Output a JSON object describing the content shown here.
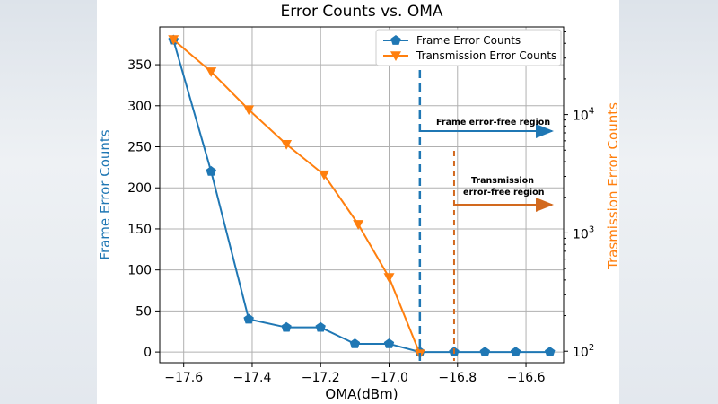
{
  "chart_data": {
    "type": "line",
    "title": "Error Counts vs. OMA",
    "xlabel": "OMA(dBm)",
    "ylabel_left": "Frame Error Counts",
    "ylabel_right": "Trasmission Error Counts",
    "xlim": [
      -17.67,
      -16.49
    ],
    "ylim_left": [
      -13,
      396
    ],
    "ylim_right_log": [
      80,
      55000
    ],
    "x_ticks": [
      "−17.6",
      "−17.4",
      "−17.2",
      "−17.0",
      "−16.8",
      "−16.6"
    ],
    "y_ticks_left": [
      "0",
      "50",
      "100",
      "150",
      "200",
      "250",
      "300",
      "350"
    ],
    "y_ticks_right": [
      {
        "base": "10",
        "exp": "2"
      },
      {
        "base": "10",
        "exp": "3"
      },
      {
        "base": "10",
        "exp": "4"
      }
    ],
    "grid": true,
    "legend_position": "top-right",
    "series": [
      {
        "name": "Frame Error Counts",
        "axis": "left",
        "marker": "pentagon",
        "color": "#1f77b4",
        "x": [
          -17.63,
          -17.52,
          -17.41,
          -17.3,
          -17.2,
          -17.1,
          -17.0,
          -16.91,
          -16.81,
          -16.72,
          -16.63,
          -16.53
        ],
        "y": [
          380,
          220,
          40,
          30,
          30,
          10,
          10,
          0,
          0,
          0,
          0,
          0
        ]
      },
      {
        "name": "Transmission Error Counts",
        "axis": "right",
        "marker": "triangle-down",
        "color": "#ff7f0e",
        "x": [
          -17.63,
          -17.52,
          -17.41,
          -17.3,
          -17.19,
          -17.09,
          -17.0,
          -16.91
        ],
        "y": [
          43000,
          23000,
          11000,
          5600,
          3100,
          1180,
          420,
          95
        ]
      }
    ],
    "annotations": [
      {
        "text": "Frame error-free region",
        "x": -16.91,
        "color": "#1f77b4"
      },
      {
        "text_lines": [
          "Transmission",
          "error-free region"
        ],
        "x": -16.81,
        "color": "#d2691e"
      }
    ]
  }
}
